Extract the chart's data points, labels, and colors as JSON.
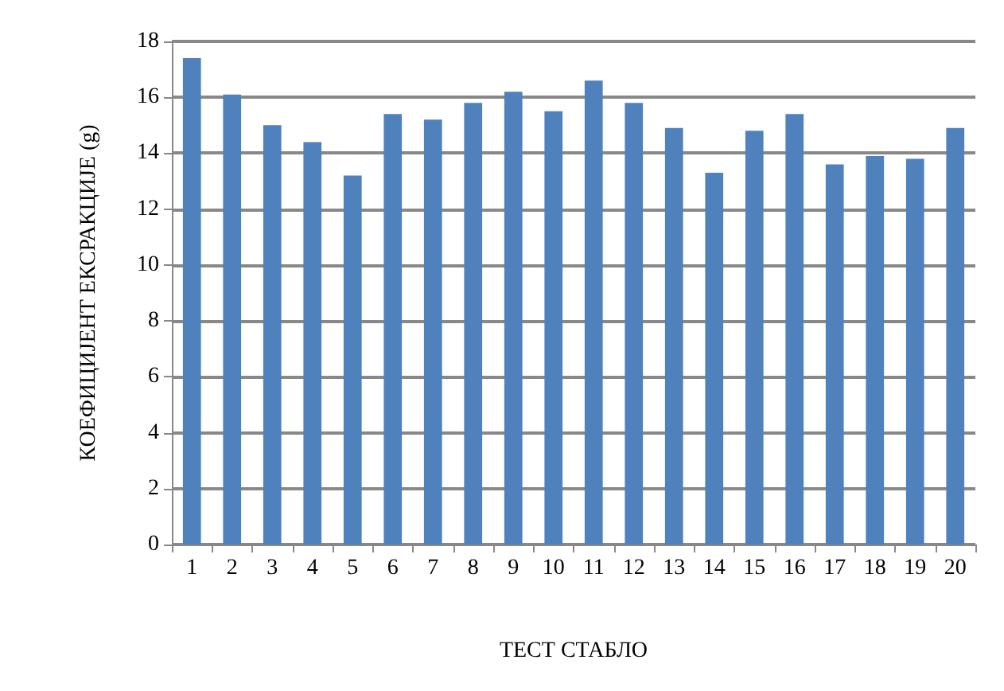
{
  "chart_data": {
    "type": "bar",
    "xlabel": "ТЕСТ СТАБЛО",
    "ylabel": "КОЕФИЦИЈЕНТ ЕКСРАКЦИЈЕ (g)",
    "categories": [
      "1",
      "2",
      "3",
      "4",
      "5",
      "6",
      "7",
      "8",
      "9",
      "10",
      "11",
      "12",
      "13",
      "14",
      "15",
      "16",
      "17",
      "18",
      "19",
      "20"
    ],
    "values": [
      17.4,
      16.1,
      15.0,
      14.4,
      13.2,
      15.4,
      15.2,
      15.8,
      16.2,
      15.5,
      16.6,
      15.8,
      14.9,
      13.3,
      14.8,
      15.4,
      13.6,
      13.9,
      13.8,
      14.9
    ],
    "color": "#4f81bd",
    "ylim": [
      0,
      18
    ],
    "yticks": [
      0,
      2,
      4,
      6,
      8,
      10,
      12,
      14,
      16,
      18
    ],
    "grid": "y"
  }
}
